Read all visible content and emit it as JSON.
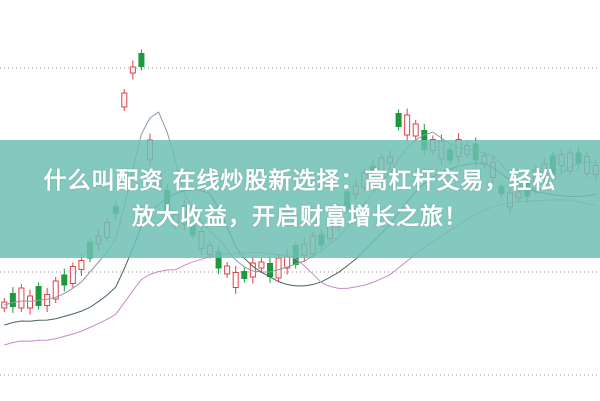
{
  "banner": {
    "title_line1": "什么叫配资 在线炒股新选择：高杠杆交易，轻松",
    "title_line2": "放大收益，开启财富增长之旅！"
  },
  "colors": {
    "banner": "#84c9c0",
    "up_candle": "#e0404a",
    "down_candle": "#1a9a3a",
    "ma_short": "#8899aa",
    "ma_mid": "#446655",
    "ma_long": "#cc88cc"
  }
}
